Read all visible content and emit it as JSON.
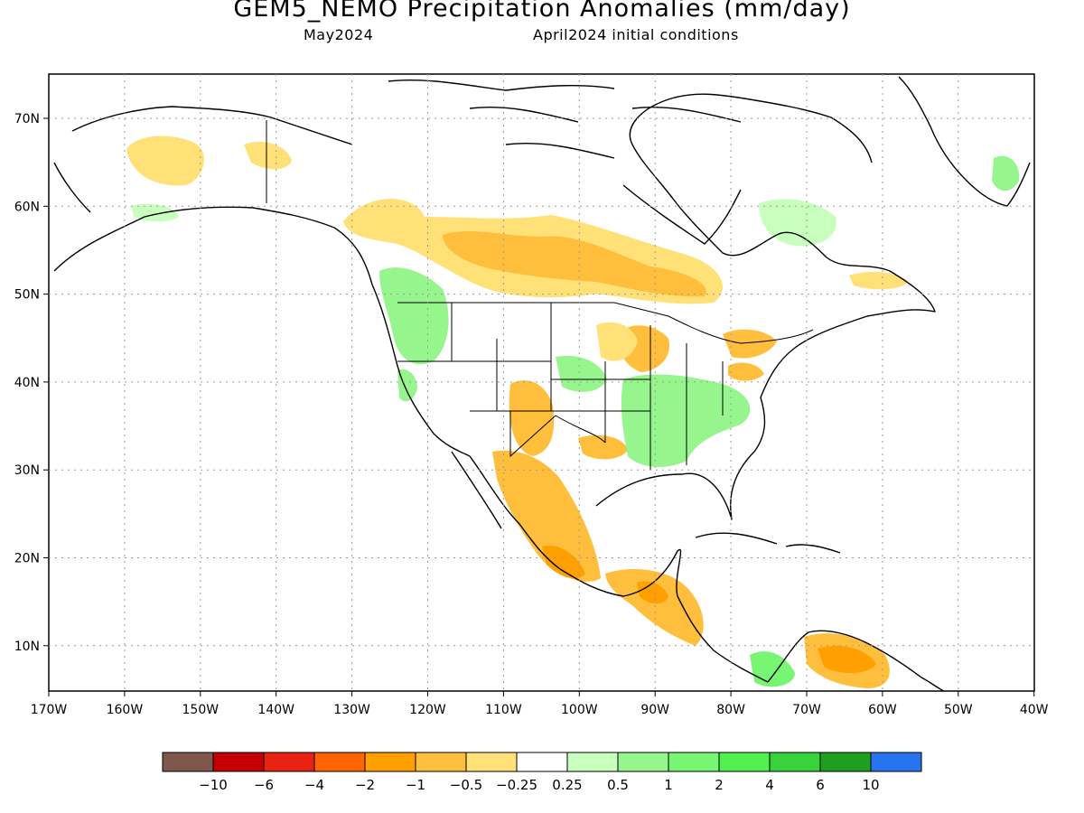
{
  "title": "GEM5_NEMO Precipitation Anomalies (mm/day)",
  "subtitle_left": "May2024",
  "subtitle_right": "April2024 initial conditions",
  "map": {
    "lon_ticks": [
      "170W",
      "160W",
      "150W",
      "140W",
      "130W",
      "120W",
      "110W",
      "100W",
      "90W",
      "80W",
      "70W",
      "60W",
      "50W",
      "40W"
    ],
    "lat_ticks": [
      "10N",
      "20N",
      "30N",
      "40N",
      "50N",
      "60N",
      "70N"
    ],
    "grid": "dotted",
    "land_color": "#ffffff",
    "coastline_color": "#000000"
  },
  "legend": {
    "colors": [
      "#7f574b",
      "#c40000",
      "#e82314",
      "#ff6400",
      "#ff9f00",
      "#ffbe3c",
      "#ffe178",
      "#ffffff",
      "#c8ffbe",
      "#96f58c",
      "#78f573",
      "#50f050",
      "#37d23c",
      "#1ea01e",
      "#2773f0"
    ],
    "labels": [
      "-10",
      "-6",
      "-4",
      "-2",
      "-1",
      "-0.5",
      "-0.25",
      "0.25",
      "0.5",
      "1",
      "2",
      "4",
      "6",
      "10"
    ]
  },
  "anomaly_regions": [
    {
      "name": "alaska-dry",
      "color": "#ffe178"
    },
    {
      "name": "canada-dry",
      "color": "#ffbe3c"
    },
    {
      "name": "mexico-dry",
      "color": "#ffbe3c"
    },
    {
      "name": "venezuela-dry",
      "color": "#ff9f00"
    },
    {
      "name": "pacific-nw-wet",
      "color": "#96f58c"
    },
    {
      "name": "southeast-us-wet",
      "color": "#96f58c"
    },
    {
      "name": "quebec-wet",
      "color": "#c8ffbe"
    },
    {
      "name": "colombia-wet",
      "color": "#78f573"
    }
  ]
}
